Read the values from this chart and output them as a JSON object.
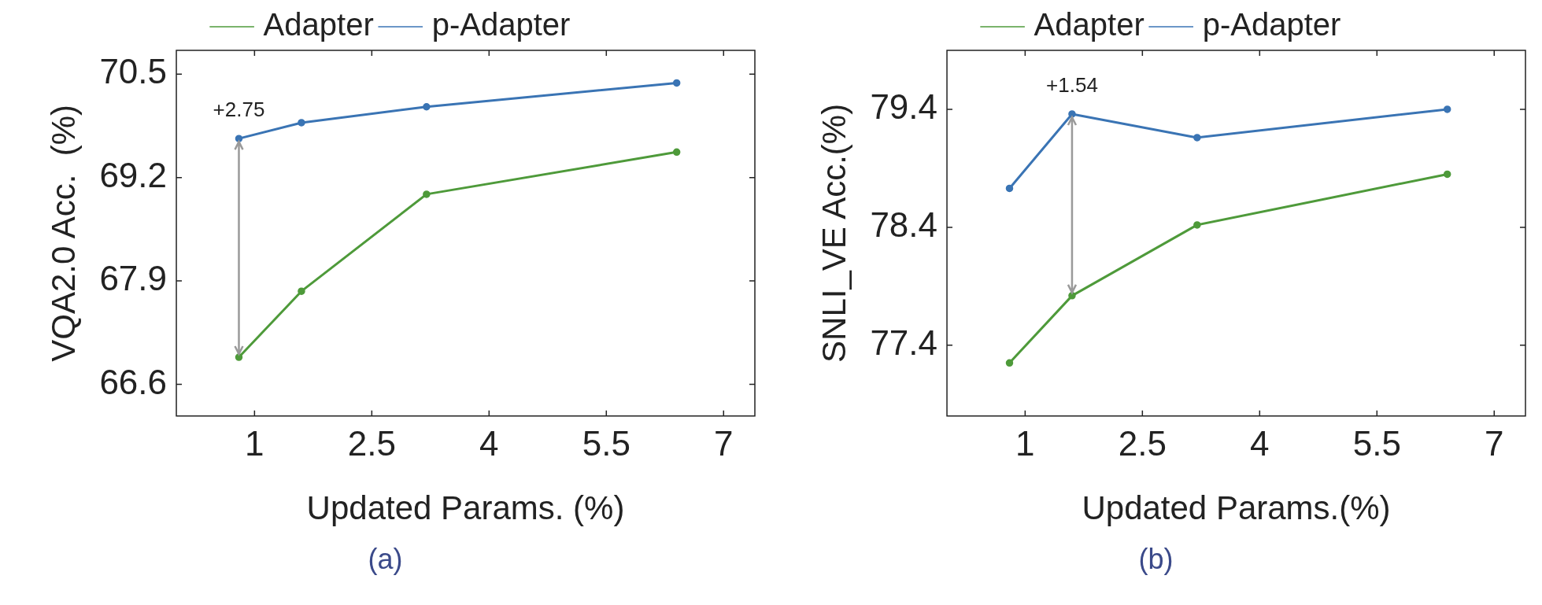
{
  "chart_data": [
    {
      "type": "line",
      "xlabel": "Updated Params. (%)",
      "ylabel": "VQA2.0 Acc.  (%)",
      "x": [
        0.8,
        1.6,
        3.2,
        6.4
      ],
      "series": [
        {
          "name": "Adapter",
          "color": "#4e9a3a",
          "values": [
            66.94,
            67.77,
            68.99,
            69.52
          ]
        },
        {
          "name": "p-Adapter",
          "color": "#3a74b4",
          "values": [
            69.69,
            69.89,
            70.09,
            70.39
          ]
        }
      ],
      "xlim": [
        0,
        7.4
      ],
      "xticks": [
        1,
        2.5,
        4,
        5.5,
        7
      ],
      "ylim": [
        66.2,
        70.8
      ],
      "yticks": [
        66.6,
        67.9,
        69.2,
        70.5
      ],
      "annotations": [
        {
          "text": "+2.75",
          "x": 0.8,
          "y": 69.69
        },
        "(a)"
      ],
      "legend": "top",
      "marker": "circle",
      "grid": false
    },
    {
      "type": "line",
      "xlabel": "Updated Params.(%)",
      "ylabel": "SNLI_VE Acc.(%)",
      "x": [
        0.8,
        1.6,
        3.2,
        6.4
      ],
      "series": [
        {
          "name": "Adapter",
          "color": "#4e9a3a",
          "values": [
            77.25,
            77.82,
            78.42,
            78.85
          ]
        },
        {
          "name": "p-Adapter",
          "color": "#3a74b4",
          "values": [
            78.73,
            79.36,
            79.16,
            79.4
          ]
        }
      ],
      "xlim": [
        0,
        7.4
      ],
      "xticks": [
        1,
        2.5,
        4,
        5.5,
        7
      ],
      "ylim": [
        76.8,
        79.9
      ],
      "yticks": [
        77.4,
        78.4,
        79.4
      ],
      "annotations": [
        {
          "text": "+1.54",
          "x": 1.6,
          "y": 79.36
        },
        "(b)"
      ],
      "legend": "top",
      "marker": "circle",
      "grid": false
    }
  ]
}
